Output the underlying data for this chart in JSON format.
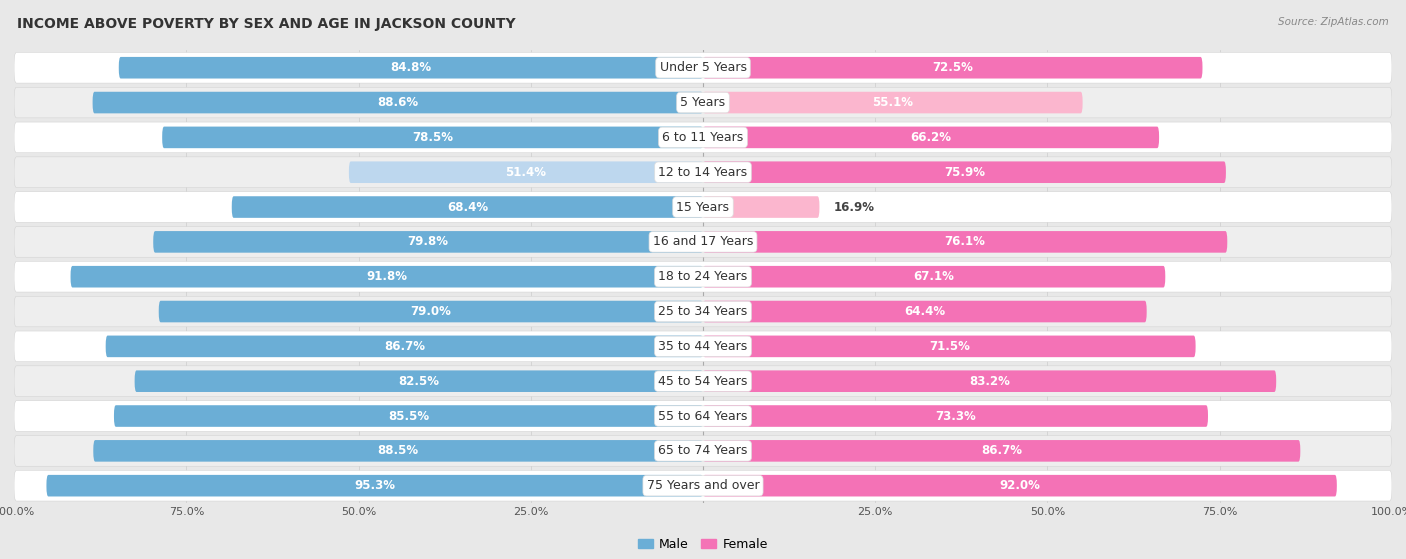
{
  "title": "INCOME ABOVE POVERTY BY SEX AND AGE IN JACKSON COUNTY",
  "source": "Source: ZipAtlas.com",
  "categories": [
    "Under 5 Years",
    "5 Years",
    "6 to 11 Years",
    "12 to 14 Years",
    "15 Years",
    "16 and 17 Years",
    "18 to 24 Years",
    "25 to 34 Years",
    "35 to 44 Years",
    "45 to 54 Years",
    "55 to 64 Years",
    "65 to 74 Years",
    "75 Years and over"
  ],
  "male_values": [
    84.8,
    88.6,
    78.5,
    51.4,
    68.4,
    79.8,
    91.8,
    79.0,
    86.7,
    82.5,
    85.5,
    88.5,
    95.3
  ],
  "female_values": [
    72.5,
    55.1,
    66.2,
    75.9,
    16.9,
    76.1,
    67.1,
    64.4,
    71.5,
    83.2,
    73.3,
    86.7,
    92.0
  ],
  "male_color_strong": "#6baed6",
  "male_color_weak": "#bdd7ee",
  "female_color_strong": "#f472b6",
  "female_color_weak": "#fbb6ce",
  "male_label": "Male",
  "female_label": "Female",
  "bg_color": "#e8e8e8",
  "row_color_odd": "#ffffff",
  "row_color_even": "#eeeeee",
  "title_fontsize": 10,
  "cat_fontsize": 9,
  "value_fontsize": 8.5,
  "axis_fontsize": 8
}
